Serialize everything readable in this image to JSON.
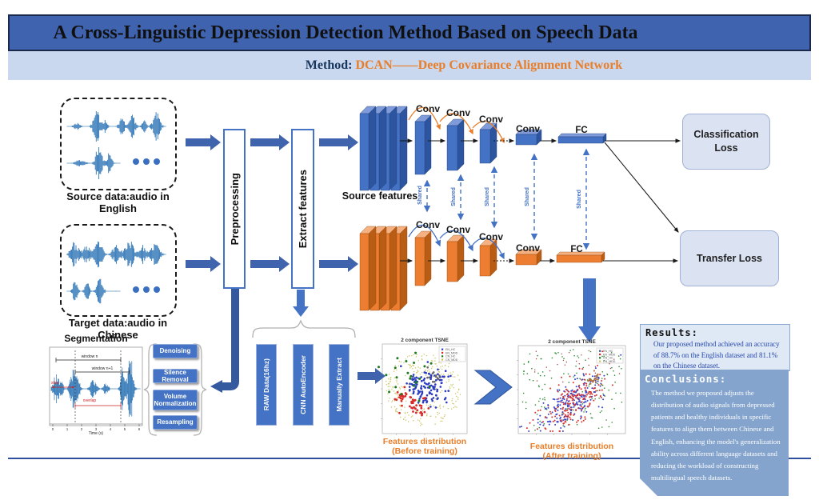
{
  "header": {
    "title": "A Cross-Linguistic Depression Detection Method Based on Speech Data",
    "method_label": "Method:",
    "method_value": "DCAN——Deep Covariance Alignment Network"
  },
  "inputs": {
    "source_prefix": "Source data:audio in ",
    "source_bold": "English",
    "target_prefix": "Target data:audio in ",
    "target_bold": "Chinese"
  },
  "pipeline": {
    "preprocessing": "Preprocessing",
    "extract_features": "Extract features"
  },
  "network": {
    "source_features_label": "Source features",
    "conv_label": "Conv",
    "fc_label": "FC",
    "shared_label": "Shared"
  },
  "losses": {
    "classification": "Classification Loss",
    "transfer": "Transfer Loss"
  },
  "segmentation": {
    "title": "Segmentation",
    "window_n": "window n",
    "window_n1": "window n+1",
    "step": "step",
    "overlap": "overlap",
    "xlabel": "Time (s)",
    "xticks": [
      "0",
      "1",
      "2",
      "3",
      "4",
      "5",
      "6"
    ]
  },
  "preprocess_steps": [
    "Denoising",
    "Silence Removal",
    "Volume Normalization",
    "Resampling"
  ],
  "feature_methods": [
    "RAW Data(16hz)",
    "CNN AutoEncoder",
    "Manually Extract"
  ],
  "tsne": {
    "title": "2 component TSNE",
    "legend": [
      "EN_HC",
      "EN_MDD",
      "CN_HC",
      "CN_MDD"
    ],
    "before_caption_1": "Features distribution",
    "before_caption_2": "(Before training)",
    "after_caption_1": "Features distribution",
    "after_caption_2": "(After training)"
  },
  "results": {
    "title": "Results:",
    "body": "Our proposed method achieved an accuracy of 88.7% on the English dataset and 81.1% on the Chinese dataset."
  },
  "conclusions": {
    "title": "Conclusions:",
    "body": "The method we proposed adjusts the distribution of audio signals from depressed patients and healthy individuals in specific features to align them between Chinese and English, enhancing the model's generalization ability across different language datasets and reducing the workload of constructing multilingual speech datasets."
  }
}
